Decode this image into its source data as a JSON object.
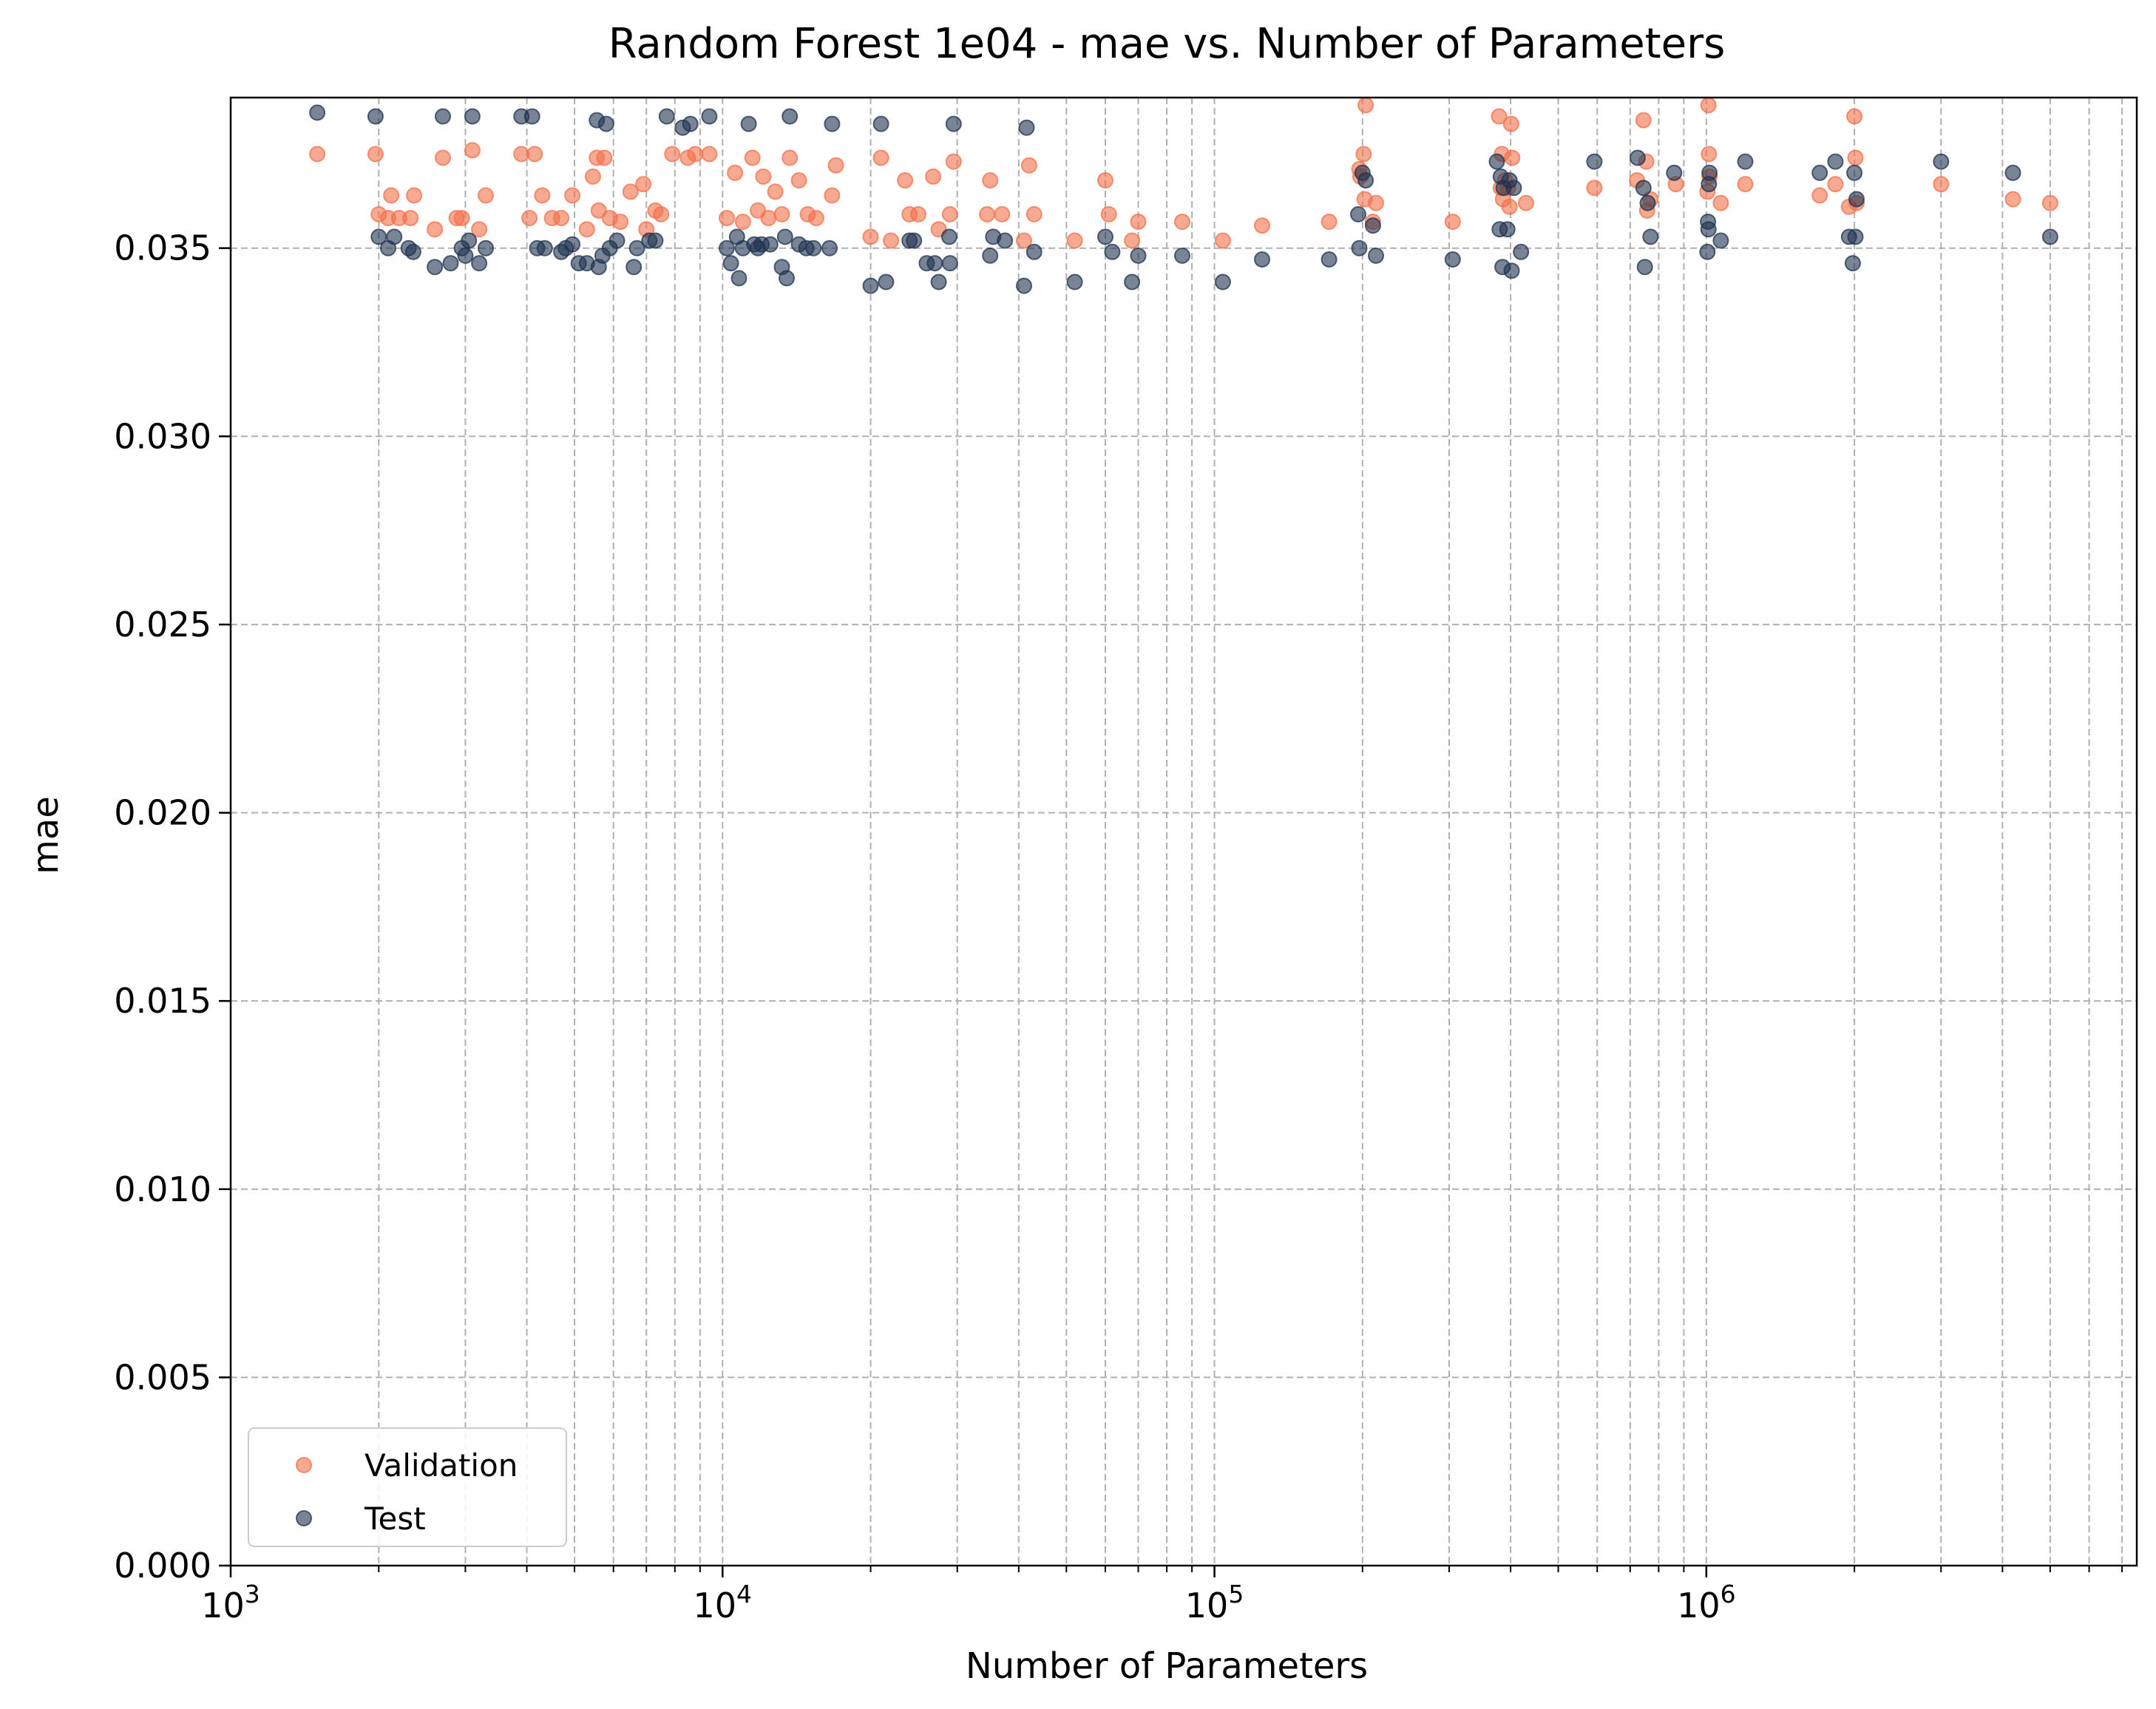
{
  "chart_data": {
    "type": "scatter",
    "title": "Random Forest 1e04 - mae vs. Number of Parameters",
    "xlabel": "Number of Parameters",
    "ylabel": "mae",
    "x_scale": "log",
    "xlim": [
      1000,
      7500000
    ],
    "ylim": [
      0.0,
      0.039
    ],
    "y_ticks": [
      "0.000",
      "0.005",
      "0.010",
      "0.015",
      "0.020",
      "0.025",
      "0.030",
      "0.035"
    ],
    "x_ticks": [
      {
        "base": "10",
        "exp": "3"
      },
      {
        "base": "10",
        "exp": "4"
      },
      {
        "base": "10",
        "exp": "5"
      },
      {
        "base": "10",
        "exp": "6"
      }
    ],
    "grid": true,
    "legend_position": "lower left",
    "series": [
      {
        "name": "Validation",
        "color": "#f4704a",
        "points": [
          [
            1500,
            0.0375
          ],
          [
            1970,
            0.0375
          ],
          [
            2000,
            0.0359
          ],
          [
            2090,
            0.0358
          ],
          [
            2120,
            0.0364
          ],
          [
            2200,
            0.0358
          ],
          [
            2320,
            0.0358
          ],
          [
            2360,
            0.0364
          ],
          [
            2600,
            0.0355
          ],
          [
            2700,
            0.0374
          ],
          [
            2880,
            0.0358
          ],
          [
            2950,
            0.0358
          ],
          [
            3100,
            0.0376
          ],
          [
            3200,
            0.0355
          ],
          [
            3300,
            0.0364
          ],
          [
            3900,
            0.0375
          ],
          [
            4050,
            0.0358
          ],
          [
            4150,
            0.0375
          ],
          [
            4300,
            0.0364
          ],
          [
            4500,
            0.0358
          ],
          [
            4700,
            0.0358
          ],
          [
            4950,
            0.0364
          ],
          [
            5300,
            0.0355
          ],
          [
            5450,
            0.0369
          ],
          [
            5550,
            0.0374
          ],
          [
            5600,
            0.036
          ],
          [
            5750,
            0.0374
          ],
          [
            5900,
            0.0358
          ],
          [
            6200,
            0.0357
          ],
          [
            6500,
            0.0365
          ],
          [
            6900,
            0.0367
          ],
          [
            7000,
            0.0355
          ],
          [
            7300,
            0.036
          ],
          [
            7500,
            0.0359
          ],
          [
            7900,
            0.0375
          ],
          [
            8500,
            0.0374
          ],
          [
            8800,
            0.0375
          ],
          [
            9400,
            0.0375
          ],
          [
            10200,
            0.0358
          ],
          [
            10600,
            0.037
          ],
          [
            11000,
            0.0357
          ],
          [
            11500,
            0.0374
          ],
          [
            11800,
            0.036
          ],
          [
            12100,
            0.0369
          ],
          [
            12400,
            0.0358
          ],
          [
            12800,
            0.0365
          ],
          [
            13200,
            0.0359
          ],
          [
            13700,
            0.0374
          ],
          [
            14300,
            0.0368
          ],
          [
            14900,
            0.0359
          ],
          [
            15500,
            0.0358
          ],
          [
            16700,
            0.0364
          ],
          [
            17000,
            0.0372
          ],
          [
            20000,
            0.0353
          ],
          [
            21000,
            0.0374
          ],
          [
            22000,
            0.0352
          ],
          [
            23500,
            0.0368
          ],
          [
            24000,
            0.0359
          ],
          [
            25000,
            0.0359
          ],
          [
            26800,
            0.0369
          ],
          [
            27500,
            0.0355
          ],
          [
            29000,
            0.0359
          ],
          [
            29500,
            0.0373
          ],
          [
            34500,
            0.0359
          ],
          [
            35000,
            0.0368
          ],
          [
            37000,
            0.0359
          ],
          [
            41000,
            0.0352
          ],
          [
            42000,
            0.0372
          ],
          [
            43000,
            0.0359
          ],
          [
            52000,
            0.0352
          ],
          [
            60000,
            0.0368
          ],
          [
            61000,
            0.0359
          ],
          [
            68000,
            0.0352
          ],
          [
            70000,
            0.0357
          ],
          [
            86000,
            0.0357
          ],
          [
            104000,
            0.0352
          ],
          [
            125000,
            0.0356
          ],
          [
            171000,
            0.0357
          ],
          [
            197000,
            0.0371
          ],
          [
            198000,
            0.0369
          ],
          [
            201000,
            0.0375
          ],
          [
            202000,
            0.0363
          ],
          [
            203000,
            0.0388
          ],
          [
            210000,
            0.0357
          ],
          [
            213000,
            0.0362
          ],
          [
            305000,
            0.0357
          ],
          [
            379000,
            0.0385
          ],
          [
            382000,
            0.0366
          ],
          [
            384000,
            0.0375
          ],
          [
            386000,
            0.0363
          ],
          [
            390000,
            0.0368
          ],
          [
            395000,
            0.0366
          ],
          [
            398000,
            0.0361
          ],
          [
            401000,
            0.0383
          ],
          [
            403000,
            0.0374
          ],
          [
            430000,
            0.0362
          ],
          [
            592000,
            0.0366
          ],
          [
            723000,
            0.0368
          ],
          [
            745000,
            0.0384
          ],
          [
            755000,
            0.0373
          ],
          [
            758000,
            0.036
          ],
          [
            770000,
            0.0363
          ],
          [
            867000,
            0.0367
          ],
          [
            1005000,
            0.0365
          ],
          [
            1010000,
            0.0388
          ],
          [
            1012000,
            0.0375
          ],
          [
            1015000,
            0.0369
          ],
          [
            1070000,
            0.0362
          ],
          [
            1200000,
            0.0367
          ],
          [
            1700000,
            0.0364
          ],
          [
            1830000,
            0.0367
          ],
          [
            1950000,
            0.0361
          ],
          [
            2000000,
            0.0385
          ],
          [
            2010000,
            0.0374
          ],
          [
            2020000,
            0.0362
          ],
          [
            3000000,
            0.0367
          ],
          [
            4200000,
            0.0363
          ],
          [
            5000000,
            0.0362
          ]
        ]
      },
      {
        "name": "Test",
        "color": "#1f3350",
        "points": [
          [
            1500,
            0.0386
          ],
          [
            1970,
            0.0385
          ],
          [
            2000,
            0.0353
          ],
          [
            2090,
            0.035
          ],
          [
            2150,
            0.0353
          ],
          [
            2300,
            0.035
          ],
          [
            2350,
            0.0349
          ],
          [
            2600,
            0.0345
          ],
          [
            2700,
            0.0385
          ],
          [
            2800,
            0.0346
          ],
          [
            2950,
            0.035
          ],
          [
            3000,
            0.0348
          ],
          [
            3050,
            0.0352
          ],
          [
            3100,
            0.0385
          ],
          [
            3200,
            0.0346
          ],
          [
            3300,
            0.035
          ],
          [
            3900,
            0.0385
          ],
          [
            4100,
            0.0385
          ],
          [
            4200,
            0.035
          ],
          [
            4350,
            0.035
          ],
          [
            4700,
            0.0349
          ],
          [
            4800,
            0.035
          ],
          [
            4950,
            0.0351
          ],
          [
            5100,
            0.0346
          ],
          [
            5300,
            0.0346
          ],
          [
            5550,
            0.0384
          ],
          [
            5600,
            0.0345
          ],
          [
            5700,
            0.0348
          ],
          [
            5800,
            0.0383
          ],
          [
            5900,
            0.035
          ],
          [
            6100,
            0.0352
          ],
          [
            6600,
            0.0345
          ],
          [
            6700,
            0.035
          ],
          [
            7100,
            0.0352
          ],
          [
            7300,
            0.0352
          ],
          [
            7700,
            0.0385
          ],
          [
            8300,
            0.0382
          ],
          [
            8600,
            0.0383
          ],
          [
            9400,
            0.0385
          ],
          [
            10200,
            0.035
          ],
          [
            10400,
            0.0346
          ],
          [
            10700,
            0.0353
          ],
          [
            10800,
            0.0342
          ],
          [
            11000,
            0.035
          ],
          [
            11300,
            0.0383
          ],
          [
            11600,
            0.0351
          ],
          [
            11800,
            0.035
          ],
          [
            12000,
            0.0351
          ],
          [
            12500,
            0.0351
          ],
          [
            13200,
            0.0345
          ],
          [
            13400,
            0.0353
          ],
          [
            13500,
            0.0342
          ],
          [
            13700,
            0.0385
          ],
          [
            14300,
            0.0351
          ],
          [
            14800,
            0.035
          ],
          [
            15300,
            0.035
          ],
          [
            16500,
            0.035
          ],
          [
            16700,
            0.0383
          ],
          [
            20000,
            0.034
          ],
          [
            21000,
            0.0383
          ],
          [
            21500,
            0.0341
          ],
          [
            24000,
            0.0352
          ],
          [
            24500,
            0.0352
          ],
          [
            26000,
            0.0346
          ],
          [
            27000,
            0.0346
          ],
          [
            27500,
            0.0341
          ],
          [
            28900,
            0.0353
          ],
          [
            29000,
            0.0346
          ],
          [
            29500,
            0.0383
          ],
          [
            35000,
            0.0348
          ],
          [
            35500,
            0.0353
          ],
          [
            37500,
            0.0352
          ],
          [
            41000,
            0.034
          ],
          [
            41500,
            0.0382
          ],
          [
            43000,
            0.0349
          ],
          [
            52000,
            0.0341
          ],
          [
            60000,
            0.0353
          ],
          [
            62000,
            0.0349
          ],
          [
            68000,
            0.0341
          ],
          [
            70000,
            0.0348
          ],
          [
            86000,
            0.0348
          ],
          [
            104000,
            0.0341
          ],
          [
            125000,
            0.0347
          ],
          [
            171000,
            0.0347
          ],
          [
            196000,
            0.0359
          ],
          [
            197000,
            0.035
          ],
          [
            200000,
            0.037
          ],
          [
            203000,
            0.0368
          ],
          [
            210000,
            0.0356
          ],
          [
            213000,
            0.0348
          ],
          [
            305000,
            0.0347
          ],
          [
            375000,
            0.0373
          ],
          [
            380000,
            0.0355
          ],
          [
            382000,
            0.0369
          ],
          [
            385000,
            0.0345
          ],
          [
            387000,
            0.0366
          ],
          [
            394000,
            0.0355
          ],
          [
            398000,
            0.0368
          ],
          [
            402000,
            0.0344
          ],
          [
            406000,
            0.0366
          ],
          [
            420000,
            0.0349
          ],
          [
            592000,
            0.0373
          ],
          [
            725000,
            0.0374
          ],
          [
            745000,
            0.0366
          ],
          [
            750000,
            0.0345
          ],
          [
            760000,
            0.0362
          ],
          [
            770000,
            0.0353
          ],
          [
            860000,
            0.037
          ],
          [
            1005000,
            0.0349
          ],
          [
            1008000,
            0.0357
          ],
          [
            1010000,
            0.0355
          ],
          [
            1012000,
            0.0367
          ],
          [
            1015000,
            0.037
          ],
          [
            1070000,
            0.0352
          ],
          [
            1200000,
            0.0373
          ],
          [
            1700000,
            0.037
          ],
          [
            1830000,
            0.0373
          ],
          [
            1950000,
            0.0353
          ],
          [
            1985000,
            0.0346
          ],
          [
            2000000,
            0.037
          ],
          [
            2010000,
            0.0353
          ],
          [
            2020000,
            0.0363
          ],
          [
            3000000,
            0.0373
          ],
          [
            4200000,
            0.037
          ],
          [
            5000000,
            0.0353
          ]
        ]
      }
    ]
  }
}
